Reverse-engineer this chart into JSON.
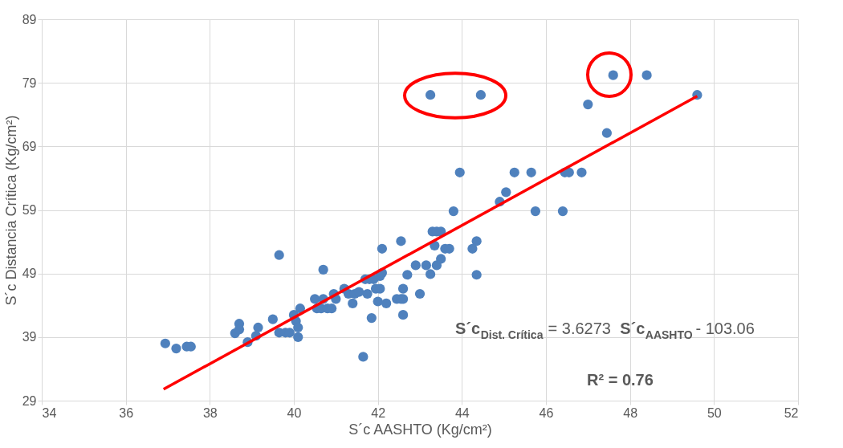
{
  "chart_data": {
    "type": "scatter",
    "xlabel": "S´c AASHTO (Kg/cm²)",
    "ylabel": "S´c Distancia Crítica (Kg/cm²)",
    "xlim": [
      34,
      52
    ],
    "xticks": [
      34,
      36,
      38,
      40,
      42,
      44,
      46,
      48,
      50,
      52
    ],
    "ylim": [
      29,
      89
    ],
    "yticks": [
      29,
      39,
      49,
      59,
      69,
      79,
      89
    ],
    "grid": true,
    "series": [
      {
        "marker": "circle",
        "color": "#4f81bd",
        "x": [
          36.94,
          37.2,
          37.45,
          37.55,
          38.6,
          38.7,
          38.7,
          38.9,
          39.1,
          39.15,
          39.5,
          39.65,
          39.65,
          39.8,
          39.9,
          40.0,
          40.05,
          40.1,
          40.1,
          40.15,
          40.5,
          40.55,
          40.65,
          40.7,
          40.7,
          40.8,
          40.9,
          40.95,
          41.0,
          41.2,
          41.3,
          41.4,
          41.45,
          41.55,
          41.65,
          41.7,
          41.8,
          41.9,
          41.75,
          41.85,
          41.95,
          42.1,
          42.05,
          42.1,
          42.05,
          42.0,
          42.2,
          42.45,
          42.55,
          42.6,
          42.55,
          42.6,
          42.6,
          42.7,
          42.9,
          43.0,
          43.15,
          43.25,
          43.25,
          43.3,
          43.4,
          43.5,
          43.35,
          43.4,
          43.5,
          43.6,
          43.7,
          43.8,
          43.95,
          44.25,
          44.35,
          44.35,
          44.45,
          44.9,
          45.05,
          45.25,
          45.65,
          45.75,
          46.4,
          46.45,
          46.55,
          46.85,
          47.0,
          47.45,
          47.6,
          48.4,
          49.6
        ],
        "values": [
          38.0,
          37.2,
          37.5,
          37.5,
          39.6,
          41.1,
          40.2,
          38.2,
          39.2,
          40.5,
          41.8,
          51.9,
          39.7,
          39.7,
          39.7,
          42.5,
          41.5,
          40.5,
          39.0,
          43.5,
          45.0,
          43.5,
          43.5,
          45.0,
          49.6,
          43.5,
          43.5,
          45.8,
          45.0,
          46.6,
          45.8,
          44.3,
          45.8,
          46.1,
          35.9,
          48.1,
          48.1,
          48.1,
          45.8,
          42.0,
          46.6,
          52.9,
          48.6,
          49.1,
          46.6,
          44.6,
          44.3,
          45.0,
          45.0,
          45.0,
          54.1,
          46.6,
          42.5,
          48.8,
          50.3,
          45.8,
          50.3,
          48.9,
          77.1,
          55.6,
          55.6,
          55.6,
          53.4,
          50.3,
          51.3,
          52.9,
          52.9,
          58.8,
          64.9,
          52.9,
          54.1,
          48.8,
          77.1,
          60.3,
          61.8,
          64.9,
          64.9,
          58.8,
          58.8,
          64.9,
          64.9,
          64.9,
          75.6,
          71.1,
          80.2,
          80.2,
          77.1
        ]
      },
      {
        "type": "line",
        "color": "#ff0000",
        "x": [
          36.9,
          49.6
        ],
        "values": [
          30.8,
          76.9
        ]
      }
    ],
    "annotations": [
      "S´c$_{Dist. Crítica}$ = 3.6273 S´c$_{AASHTO}$ - 103.06",
      "R² = 0.76"
    ]
  }
}
